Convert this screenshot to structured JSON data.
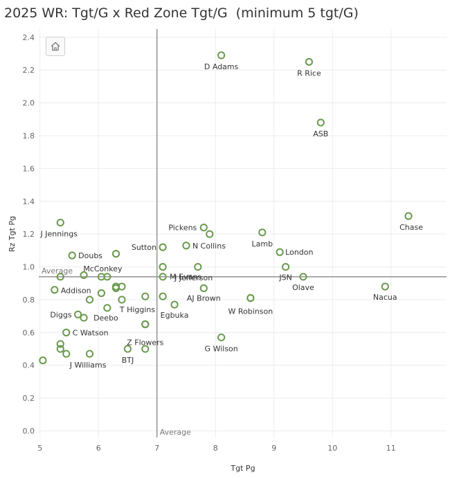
{
  "chart_data": {
    "type": "scatter",
    "title": "2025 WR: Tgt/G x Red Zone Tgt/G  (minimum 5 tgt/G)",
    "xlabel": "Tgt Pg",
    "ylabel": "Rz Tgt Pg",
    "xlim": [
      4.98,
      11.95
    ],
    "ylim": [
      -0.04,
      2.45
    ],
    "xticks": [
      5,
      6,
      7,
      8,
      9,
      10,
      11
    ],
    "yticks": [
      0.0,
      0.2,
      0.4,
      0.6,
      0.8,
      1.0,
      1.2,
      1.4,
      1.6,
      1.8,
      2.0,
      2.2,
      2.4
    ],
    "grid": true,
    "marker_color": "#6a9a4e",
    "reference_lines": {
      "x_average": 7.0,
      "y_average": 0.94,
      "x_label": "Average",
      "y_label": "Average",
      "color": "#999999"
    },
    "points": [
      {
        "x": 8.1,
        "y": 2.29,
        "label": "D Adams"
      },
      {
        "x": 9.6,
        "y": 2.25,
        "label": "R Rice"
      },
      {
        "x": 9.8,
        "y": 1.88,
        "label": "ASB"
      },
      {
        "x": 11.3,
        "y": 1.31,
        "label": "Chase"
      },
      {
        "x": 5.35,
        "y": 1.27,
        "label": "J Jennings"
      },
      {
        "x": 7.8,
        "y": 1.24,
        "label": "Pickens"
      },
      {
        "x": 7.9,
        "y": 1.2,
        "label": ""
      },
      {
        "x": 8.8,
        "y": 1.21,
        "label": "Lamb"
      },
      {
        "x": 7.5,
        "y": 1.13,
        "label": "N Collins"
      },
      {
        "x": 7.1,
        "y": 1.12,
        "label": "Sutton"
      },
      {
        "x": 9.1,
        "y": 1.09,
        "label": "London"
      },
      {
        "x": 5.55,
        "y": 1.07,
        "label": "Doubs"
      },
      {
        "x": 6.3,
        "y": 1.08,
        "label": ""
      },
      {
        "x": 7.1,
        "y": 1.0,
        "label": "M Evans"
      },
      {
        "x": 7.7,
        "y": 1.0,
        "label": ""
      },
      {
        "x": 9.2,
        "y": 1.0,
        "label": "JSN"
      },
      {
        "x": 5.35,
        "y": 0.94,
        "label": ""
      },
      {
        "x": 5.75,
        "y": 0.95,
        "label": ""
      },
      {
        "x": 6.05,
        "y": 0.94,
        "label": "McConkey"
      },
      {
        "x": 6.15,
        "y": 0.94,
        "label": ""
      },
      {
        "x": 7.1,
        "y": 0.94,
        "label": "J Jefferson"
      },
      {
        "x": 9.5,
        "y": 0.94,
        "label": "Olave"
      },
      {
        "x": 5.25,
        "y": 0.86,
        "label": "Addison"
      },
      {
        "x": 6.3,
        "y": 0.88,
        "label": ""
      },
      {
        "x": 6.3,
        "y": 0.87,
        "label": ""
      },
      {
        "x": 6.4,
        "y": 0.88,
        "label": ""
      },
      {
        "x": 6.05,
        "y": 0.84,
        "label": ""
      },
      {
        "x": 5.85,
        "y": 0.8,
        "label": ""
      },
      {
        "x": 6.4,
        "y": 0.8,
        "label": ""
      },
      {
        "x": 6.8,
        "y": 0.82,
        "label": ""
      },
      {
        "x": 7.1,
        "y": 0.82,
        "label": ""
      },
      {
        "x": 7.8,
        "y": 0.87,
        "label": "AJ Brown"
      },
      {
        "x": 8.6,
        "y": 0.81,
        "label": ""
      },
      {
        "x": 10.9,
        "y": 0.88,
        "label": "Nacua"
      },
      {
        "x": 6.15,
        "y": 0.75,
        "label": "T Higgins"
      },
      {
        "x": 7.3,
        "y": 0.77,
        "label": "Egbuka"
      },
      {
        "x": 5.65,
        "y": 0.71,
        "label": "Diggs"
      },
      {
        "x": 5.75,
        "y": 0.69,
        "label": "Deebo"
      },
      {
        "x": 6.8,
        "y": 0.65,
        "label": ""
      },
      {
        "x": 6.8,
        "y": 0.65,
        "label": "Z Flowers"
      },
      {
        "x": 5.45,
        "y": 0.6,
        "label": "C Watson"
      },
      {
        "x": 5.35,
        "y": 0.53,
        "label": ""
      },
      {
        "x": 5.35,
        "y": 0.5,
        "label": ""
      },
      {
        "x": 5.45,
        "y": 0.47,
        "label": "J Williams"
      },
      {
        "x": 5.85,
        "y": 0.47,
        "label": ""
      },
      {
        "x": 6.5,
        "y": 0.5,
        "label": "BTJ"
      },
      {
        "x": 6.8,
        "y": 0.5,
        "label": ""
      },
      {
        "x": 8.1,
        "y": 0.57,
        "label": "G Wilson"
      },
      {
        "x": 5.05,
        "y": 0.43,
        "label": ""
      },
      {
        "x": 8.6,
        "y": 0.81,
        "label": "W Robinson"
      }
    ]
  },
  "toolbar": {
    "home_icon": "home-icon"
  }
}
